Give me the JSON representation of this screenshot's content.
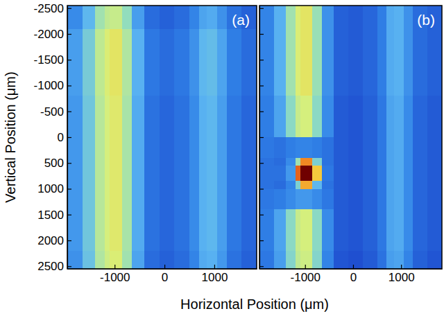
{
  "chart_data": [
    {
      "type": "heatmap",
      "annotation": "(a)",
      "xlabel": "Horizontal Position (μm)",
      "ylabel": "Vertical Position (μm)",
      "xlim": [
        -1950,
        1850
      ],
      "ylim": [
        -2550,
        2550
      ],
      "xticks": [
        -1000,
        0,
        1000
      ],
      "yticks": [
        -2500,
        -2000,
        -1500,
        -1000,
        -500,
        0,
        500,
        1000,
        1500,
        2000,
        2500
      ],
      "tick_labels": true,
      "x_edges": [
        -1950,
        -1650,
        -1400,
        -1200,
        -1100,
        -850,
        -650,
        -400,
        -100,
        200,
        500,
        700,
        850,
        1050,
        1250,
        1550,
        1850
      ],
      "y_edges": [
        -2550,
        -2100,
        -1650,
        -1200,
        -800,
        -400,
        0,
        400,
        550,
        850,
        1000,
        1400,
        1800,
        2200,
        2550
      ],
      "z": [
        [
          28,
          35,
          45,
          49,
          50,
          43,
          31,
          23,
          21,
          23,
          27,
          32,
          33,
          29,
          24,
          21
        ],
        [
          31,
          39,
          49,
          53,
          55,
          47,
          34,
          25,
          23,
          25,
          29,
          35,
          36,
          32,
          26,
          23
        ],
        [
          31,
          39,
          49,
          53,
          55,
          47,
          34,
          25,
          23,
          25,
          29,
          35,
          36,
          32,
          26,
          23
        ],
        [
          31,
          39,
          49,
          53,
          55,
          47,
          34,
          25,
          23,
          25,
          29,
          35,
          36,
          32,
          26,
          23
        ],
        [
          30,
          38,
          48,
          52,
          54,
          46,
          33,
          24,
          22,
          24,
          28,
          34,
          35,
          31,
          25,
          22
        ],
        [
          30,
          38,
          48,
          52,
          54,
          46,
          33,
          24,
          22,
          24,
          28,
          34,
          35,
          31,
          25,
          22
        ],
        [
          30,
          38,
          48,
          52,
          54,
          46,
          33,
          24,
          22,
          24,
          28,
          34,
          35,
          31,
          25,
          22
        ],
        [
          30,
          38,
          48,
          52,
          54,
          46,
          33,
          24,
          22,
          24,
          28,
          34,
          35,
          31,
          25,
          22
        ],
        [
          30,
          38,
          48,
          52,
          54,
          46,
          33,
          24,
          22,
          24,
          28,
          34,
          35,
          31,
          25,
          22
        ],
        [
          30,
          38,
          48,
          52,
          54,
          46,
          33,
          24,
          22,
          24,
          28,
          34,
          35,
          31,
          25,
          22
        ],
        [
          30,
          38,
          48,
          52,
          54,
          46,
          33,
          24,
          22,
          24,
          28,
          34,
          35,
          31,
          25,
          22
        ],
        [
          30,
          38,
          48,
          52,
          54,
          46,
          33,
          24,
          22,
          24,
          28,
          34,
          35,
          31,
          25,
          22
        ],
        [
          30,
          38,
          48,
          52,
          54,
          46,
          33,
          24,
          22,
          24,
          28,
          34,
          35,
          31,
          25,
          22
        ],
        [
          29,
          37,
          47,
          51,
          53,
          45,
          32,
          23,
          21,
          23,
          27,
          33,
          34,
          30,
          24,
          21
        ]
      ]
    },
    {
      "type": "heatmap",
      "annotation": "(b)",
      "xlim": [
        -1950,
        1850
      ],
      "ylim": [
        -2550,
        2550
      ],
      "xticks": [
        -1000,
        0,
        1000
      ],
      "yticks": [
        -2500,
        -2000,
        -1500,
        -1000,
        -500,
        0,
        500,
        1000,
        1500,
        2000,
        2500
      ],
      "tick_labels": "x",
      "x_edges": [
        -1950,
        -1650,
        -1400,
        -1200,
        -1100,
        -850,
        -650,
        -400,
        -100,
        200,
        500,
        700,
        850,
        1050,
        1250,
        1550,
        1850
      ],
      "y_edges": [
        -2550,
        -2100,
        -1650,
        -1200,
        -800,
        -400,
        0,
        400,
        550,
        850,
        1000,
        1400,
        1800,
        2200,
        2550
      ],
      "z": [
        [
          27,
          34,
          45,
          53,
          55,
          44,
          29,
          21,
          20,
          22,
          26,
          33,
          34,
          29,
          23,
          21
        ],
        [
          27,
          34,
          45,
          53,
          55,
          44,
          29,
          21,
          20,
          22,
          26,
          33,
          34,
          29,
          23,
          21
        ],
        [
          27,
          34,
          45,
          53,
          55,
          44,
          29,
          21,
          20,
          22,
          26,
          33,
          34,
          29,
          23,
          21
        ],
        [
          27,
          34,
          45,
          53,
          55,
          44,
          29,
          21,
          20,
          22,
          26,
          33,
          34,
          29,
          23,
          21
        ],
        [
          26,
          32,
          42,
          50,
          52,
          42,
          28,
          20,
          19,
          21,
          25,
          32,
          33,
          28,
          22,
          20
        ],
        [
          26,
          32,
          42,
          50,
          52,
          42,
          28,
          20,
          19,
          21,
          25,
          32,
          33,
          28,
          22,
          20
        ],
        [
          25,
          24,
          26,
          27,
          27,
          26,
          24,
          20,
          19,
          21,
          25,
          32,
          33,
          28,
          22,
          20
        ],
        [
          24,
          23,
          28,
          45,
          70,
          40,
          24,
          20,
          19,
          21,
          25,
          32,
          33,
          28,
          22,
          20
        ],
        [
          24,
          24,
          30,
          75,
          100,
          60,
          25,
          20,
          19,
          21,
          25,
          32,
          33,
          28,
          22,
          20
        ],
        [
          24,
          23,
          27,
          40,
          65,
          35,
          24,
          20,
          19,
          21,
          25,
          32,
          33,
          28,
          22,
          20
        ],
        [
          25,
          26,
          28,
          30,
          30,
          28,
          25,
          20,
          19,
          21,
          25,
          32,
          33,
          28,
          22,
          20
        ],
        [
          26,
          32,
          42,
          50,
          52,
          42,
          28,
          20,
          19,
          21,
          25,
          32,
          33,
          28,
          22,
          20
        ],
        [
          26,
          32,
          42,
          50,
          52,
          42,
          28,
          20,
          19,
          21,
          25,
          32,
          33,
          28,
          22,
          20
        ],
        [
          25,
          31,
          41,
          49,
          51,
          41,
          27,
          19,
          18,
          20,
          24,
          31,
          32,
          27,
          21,
          19
        ]
      ]
    }
  ]
}
